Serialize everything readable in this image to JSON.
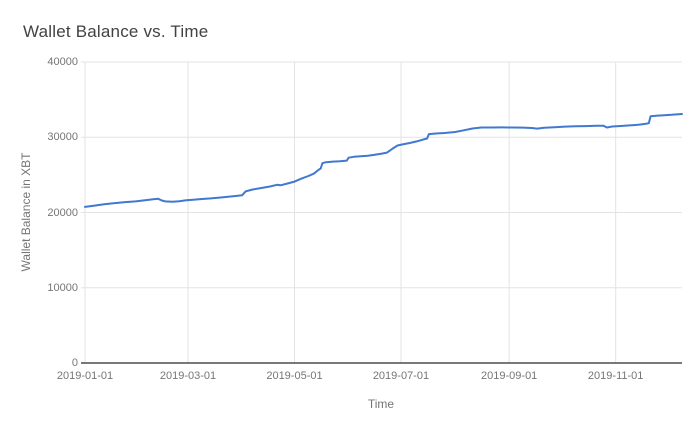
{
  "chart_data": {
    "type": "line",
    "title": "Wallet Balance vs. Time",
    "xlabel": "Time",
    "ylabel": "Wallet Balance in XBT",
    "legend": "none",
    "grid": true,
    "ylim": [
      0,
      40000
    ],
    "x_domain": [
      "2019-01-01",
      "2019-12-09"
    ],
    "x_ticks": [
      "2019-01-01",
      "2019-03-01",
      "2019-05-01",
      "2019-07-01",
      "2019-09-01",
      "2019-11-01"
    ],
    "y_ticks": [
      0,
      10000,
      20000,
      30000,
      40000
    ],
    "colors": {
      "line": "#4178d0",
      "grid": "#e3e3e3",
      "baseline": "#4d4d4d",
      "tick_label": "#757575",
      "axis_title": "#757575",
      "title": "#424242",
      "background": "#ffffff"
    },
    "series": [
      {
        "points": [
          [
            "2019-01-01",
            20750
          ],
          [
            "2019-01-06",
            20900
          ],
          [
            "2019-01-12",
            21100
          ],
          [
            "2019-01-18",
            21250
          ],
          [
            "2019-01-24",
            21380
          ],
          [
            "2019-01-30",
            21480
          ],
          [
            "2019-02-05",
            21650
          ],
          [
            "2019-02-09",
            21760
          ],
          [
            "2019-02-12",
            21820
          ],
          [
            "2019-02-14",
            21600
          ],
          [
            "2019-02-16",
            21470
          ],
          [
            "2019-02-20",
            21430
          ],
          [
            "2019-02-24",
            21500
          ],
          [
            "2019-02-28",
            21620
          ],
          [
            "2019-03-04",
            21700
          ],
          [
            "2019-03-09",
            21790
          ],
          [
            "2019-03-14",
            21870
          ],
          [
            "2019-03-19",
            21980
          ],
          [
            "2019-03-24",
            22080
          ],
          [
            "2019-03-29",
            22200
          ],
          [
            "2019-04-01",
            22280
          ],
          [
            "2019-04-03",
            22800
          ],
          [
            "2019-04-07",
            23050
          ],
          [
            "2019-04-12",
            23250
          ],
          [
            "2019-04-17",
            23450
          ],
          [
            "2019-04-21",
            23680
          ],
          [
            "2019-04-23",
            23620
          ],
          [
            "2019-04-27",
            23850
          ],
          [
            "2019-05-01",
            24100
          ],
          [
            "2019-05-05",
            24500
          ],
          [
            "2019-05-09",
            24850
          ],
          [
            "2019-05-12",
            25150
          ],
          [
            "2019-05-15",
            25700
          ],
          [
            "2019-05-16",
            25850
          ],
          [
            "2019-05-17",
            26550
          ],
          [
            "2019-05-19",
            26680
          ],
          [
            "2019-05-23",
            26760
          ],
          [
            "2019-05-27",
            26820
          ],
          [
            "2019-05-31",
            26900
          ],
          [
            "2019-06-01",
            27280
          ],
          [
            "2019-06-04",
            27400
          ],
          [
            "2019-06-08",
            27470
          ],
          [
            "2019-06-12",
            27540
          ],
          [
            "2019-06-16",
            27680
          ],
          [
            "2019-06-20",
            27830
          ],
          [
            "2019-06-23",
            27960
          ],
          [
            "2019-06-26",
            28450
          ],
          [
            "2019-06-29",
            28900
          ],
          [
            "2019-07-02",
            29050
          ],
          [
            "2019-07-06",
            29230
          ],
          [
            "2019-07-10",
            29450
          ],
          [
            "2019-07-14",
            29720
          ],
          [
            "2019-07-16",
            29830
          ],
          [
            "2019-07-17",
            30420
          ],
          [
            "2019-07-21",
            30500
          ],
          [
            "2019-07-26",
            30560
          ],
          [
            "2019-08-01",
            30700
          ],
          [
            "2019-08-06",
            30920
          ],
          [
            "2019-08-11",
            31160
          ],
          [
            "2019-08-16",
            31300
          ],
          [
            "2019-08-22",
            31290
          ],
          [
            "2019-08-28",
            31310
          ],
          [
            "2019-09-03",
            31300
          ],
          [
            "2019-09-09",
            31280
          ],
          [
            "2019-09-14",
            31230
          ],
          [
            "2019-09-17",
            31150
          ],
          [
            "2019-09-21",
            31260
          ],
          [
            "2019-09-27",
            31340
          ],
          [
            "2019-10-03",
            31420
          ],
          [
            "2019-10-09",
            31450
          ],
          [
            "2019-10-15",
            31480
          ],
          [
            "2019-10-21",
            31520
          ],
          [
            "2019-10-25",
            31540
          ],
          [
            "2019-10-27",
            31300
          ],
          [
            "2019-10-30",
            31430
          ],
          [
            "2019-11-04",
            31500
          ],
          [
            "2019-11-09",
            31570
          ],
          [
            "2019-11-14",
            31650
          ],
          [
            "2019-11-18",
            31780
          ],
          [
            "2019-11-20",
            31870
          ],
          [
            "2019-11-21",
            32780
          ],
          [
            "2019-11-25",
            32880
          ],
          [
            "2019-11-29",
            32930
          ],
          [
            "2019-12-03",
            32990
          ],
          [
            "2019-12-07",
            33060
          ],
          [
            "2019-12-09",
            33090
          ]
        ]
      }
    ]
  }
}
